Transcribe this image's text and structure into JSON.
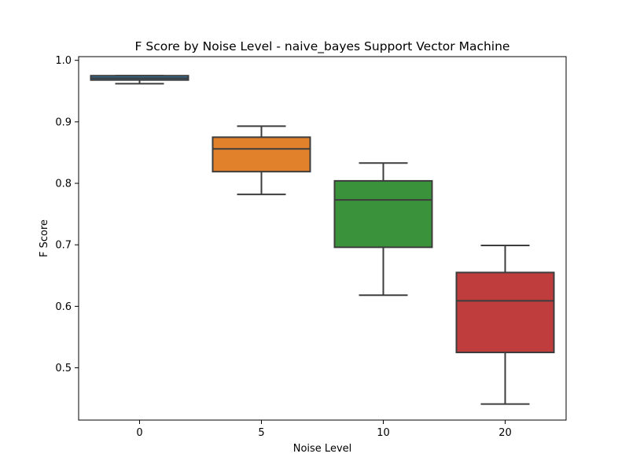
{
  "chart_data": {
    "type": "box",
    "title": "F Score by Noise Level - naive_bayes Support Vector Machine",
    "xlabel": "Noise Level",
    "ylabel": "F Score",
    "categories": [
      "0",
      "5",
      "10",
      "20"
    ],
    "ylim": [
      0.415,
      1.006
    ],
    "yticks": [
      0.5,
      0.6,
      0.7,
      0.8,
      0.9,
      1.0
    ],
    "ytick_labels": [
      "0.5",
      "0.6",
      "0.7",
      "0.8",
      "0.9",
      "1.0"
    ],
    "boxes": [
      {
        "category": "0",
        "whisker_low": 0.962,
        "q1": 0.968,
        "median": 0.971,
        "q3": 0.975,
        "whisker_high": 0.975,
        "color": "#3274a1"
      },
      {
        "category": "5",
        "whisker_low": 0.782,
        "q1": 0.819,
        "median": 0.856,
        "q3": 0.875,
        "whisker_high": 0.893,
        "color": "#e1812c"
      },
      {
        "category": "10",
        "whisker_low": 0.618,
        "q1": 0.696,
        "median": 0.773,
        "q3": 0.804,
        "whisker_high": 0.833,
        "color": "#3a923a"
      },
      {
        "category": "20",
        "whisker_low": 0.441,
        "q1": 0.525,
        "median": 0.609,
        "q3": 0.655,
        "whisker_high": 0.699,
        "color": "#c03d3e"
      }
    ],
    "grid": false,
    "legend": "none"
  }
}
